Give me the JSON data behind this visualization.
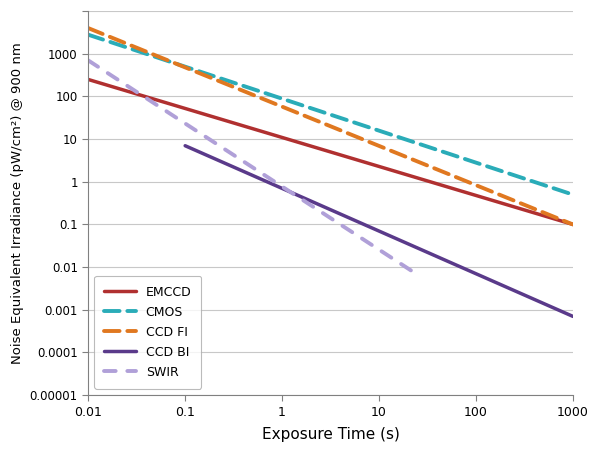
{
  "title": "",
  "xlabel": "Exposure Time (s)",
  "ylabel": "Noise Equivalent Irradiance (pW/cm²) @ 900 nm",
  "xlim": [
    0.01,
    1000
  ],
  "ylim": [
    1e-05,
    10000.0
  ],
  "background_color": "#ffffff",
  "emccd": {
    "label": "EMCCD",
    "color": "#b03030",
    "x": [
      0.01,
      1000
    ],
    "y": [
      250,
      0.1
    ],
    "linestyle": "solid",
    "linewidth": 2.5
  },
  "cmos": {
    "label": "CMOS",
    "color": "#2aacb8",
    "x": [
      0.01,
      1000
    ],
    "y": [
      2800,
      0.5
    ],
    "linestyle": "dashed",
    "linewidth": 2.8,
    "dash_capstyle": "round"
  },
  "ccd_fi": {
    "label": "CCD FI",
    "color": "#e07820",
    "x": [
      0.01,
      1000
    ],
    "y": [
      4000,
      0.1
    ],
    "linestyle": "dashed",
    "linewidth": 2.8
  },
  "ccd_bi": {
    "label": "CCD BI",
    "color": "#5a3a8a",
    "x": [
      0.1,
      1000
    ],
    "y": [
      7.0,
      0.0007
    ],
    "linestyle": "solid",
    "linewidth": 2.5
  },
  "swir": {
    "label": "SWIR",
    "color": "#b0a0d8",
    "x": [
      0.01,
      22
    ],
    "y": [
      700,
      0.008
    ],
    "linestyle": "dashed",
    "linewidth": 2.8
  },
  "yticks": [
    1e-05,
    0.0001,
    0.001,
    0.01,
    0.1,
    1.0,
    10.0,
    100.0,
    1000.0,
    10000.0
  ],
  "ylabels": [
    "0.00001",
    "0.0001",
    "0.001",
    "0.01",
    "0.1",
    "1",
    "10",
    "100",
    "1000",
    ""
  ],
  "xtick_vals": [
    0.01,
    0.1,
    1,
    10,
    100,
    1000
  ],
  "xtick_labels": [
    "0.01",
    "0.1",
    "1",
    "10",
    "100",
    "1000"
  ]
}
